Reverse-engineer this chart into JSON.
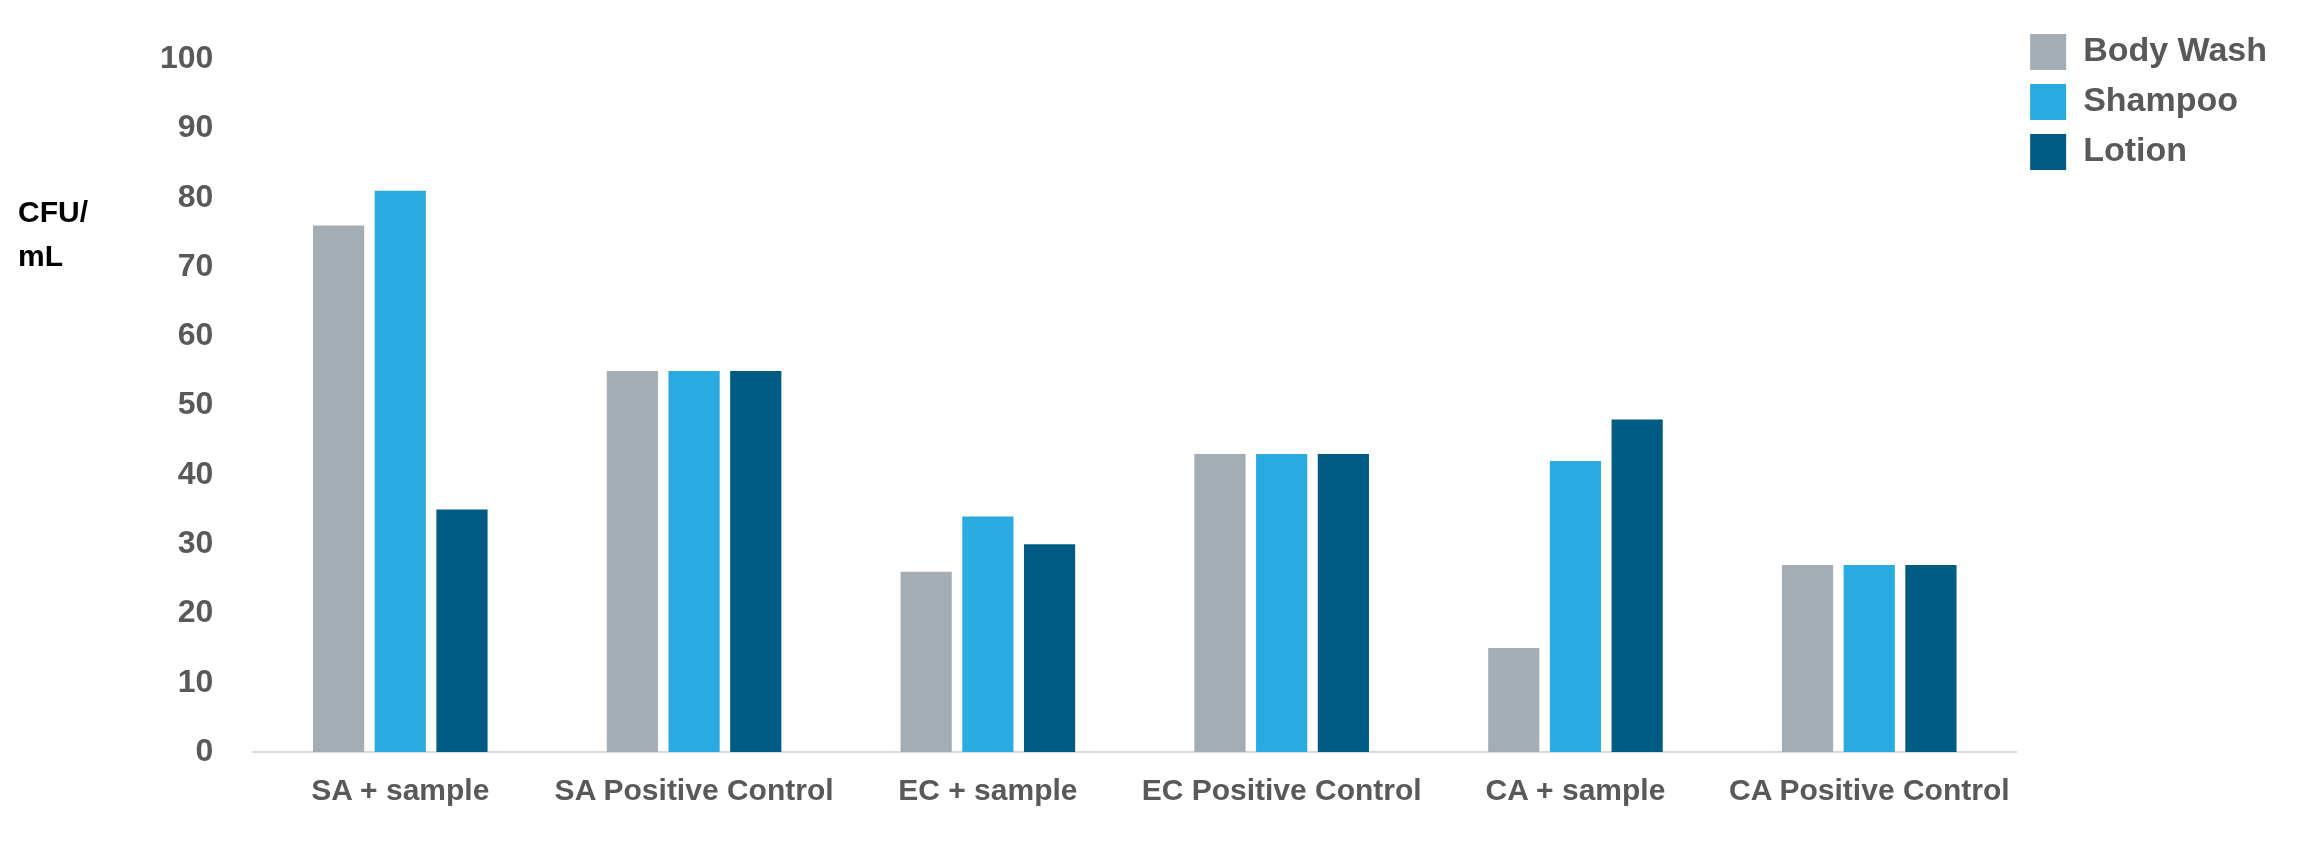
{
  "chart_data": {
    "type": "bar",
    "ylabel": "CFU/ mL",
    "categories": [
      "SA + sample",
      "SA Positive Control",
      "EC + sample",
      "EC Positive Control",
      "CA + sample",
      "CA Positive Control"
    ],
    "series": [
      {
        "name": "Body Wash",
        "color": "#a5adb4",
        "values": [
          76,
          55,
          26,
          43,
          15,
          27
        ]
      },
      {
        "name": "Shampoo",
        "color": "#29abe2",
        "values": [
          81,
          55,
          34,
          43,
          42,
          27
        ]
      },
      {
        "name": "Lotion",
        "color": "#005b82",
        "values": [
          35,
          55,
          30,
          43,
          48,
          27
        ]
      }
    ],
    "ylim": [
      0,
      100
    ],
    "yticks": [
      0,
      10,
      20,
      30,
      40,
      50,
      60,
      70,
      80,
      90,
      100
    ],
    "grid": false,
    "legend": "top right"
  }
}
